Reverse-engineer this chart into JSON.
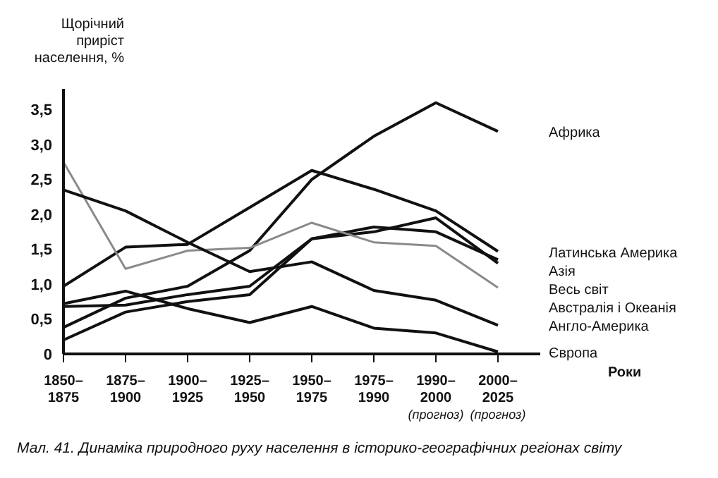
{
  "chart_data": {
    "type": "line",
    "title": "Мал. 41. Динаміка природного руху населення в історико-географічних регіонах світу",
    "ylabel": "Щорічний приріст населення, %",
    "xlabel": "Роки",
    "categories": [
      "1850–\n1875",
      "1875–\n1900",
      "1900–\n1925",
      "1925–\n1950",
      "1950–\n1975",
      "1975–\n1990",
      "1990–\n2000\n(прогноз)",
      "2000–\n2025\n(прогноз)"
    ],
    "series": [
      {
        "name": "Африка",
        "color": "#111111",
        "values": [
          0.38,
          0.8,
          0.97,
          1.48,
          2.5,
          3.12,
          3.6,
          3.19
        ]
      },
      {
        "name": "Латинська Америка",
        "color": "#111111",
        "values": [
          0.97,
          1.53,
          1.57,
          2.1,
          2.63,
          2.36,
          2.05,
          1.47
        ]
      },
      {
        "name": "Азія",
        "color": "#111111",
        "values": [
          0.68,
          0.7,
          0.85,
          0.97,
          1.65,
          1.82,
          1.75,
          1.35
        ]
      },
      {
        "name": "Весь світ",
        "color": "#111111",
        "values": [
          0.2,
          0.6,
          0.75,
          0.85,
          1.65,
          1.75,
          1.95,
          1.3
        ]
      },
      {
        "name": "Австралія і Океанія",
        "color": "#8a8a8a",
        "values": [
          2.75,
          1.22,
          1.48,
          1.52,
          1.88,
          1.6,
          1.55,
          0.95
        ]
      },
      {
        "name": "Англо-Америка",
        "color": "#111111",
        "values": [
          2.35,
          2.05,
          1.6,
          1.18,
          1.32,
          0.91,
          0.77,
          0.41
        ]
      },
      {
        "name": "Європа",
        "color": "#111111",
        "values": [
          0.72,
          0.9,
          0.65,
          0.45,
          0.68,
          0.37,
          0.3,
          0.03
        ]
      }
    ],
    "ylim": [
      0,
      3.8
    ],
    "yticks": [
      0,
      {
        "value": 0.5,
        "label": "0,5"
      },
      {
        "value": 1,
        "label": "1,0"
      },
      {
        "value": 1.5,
        "label": "1,5"
      },
      {
        "value": 2,
        "label": "2,0"
      },
      {
        "value": 2.5,
        "label": "2,5"
      },
      {
        "value": 3,
        "label": "3,0"
      },
      {
        "value": 3.5,
        "label": "3,5"
      }
    ],
    "grid": false,
    "legend": false,
    "marker": "none",
    "line_style": "solid"
  }
}
